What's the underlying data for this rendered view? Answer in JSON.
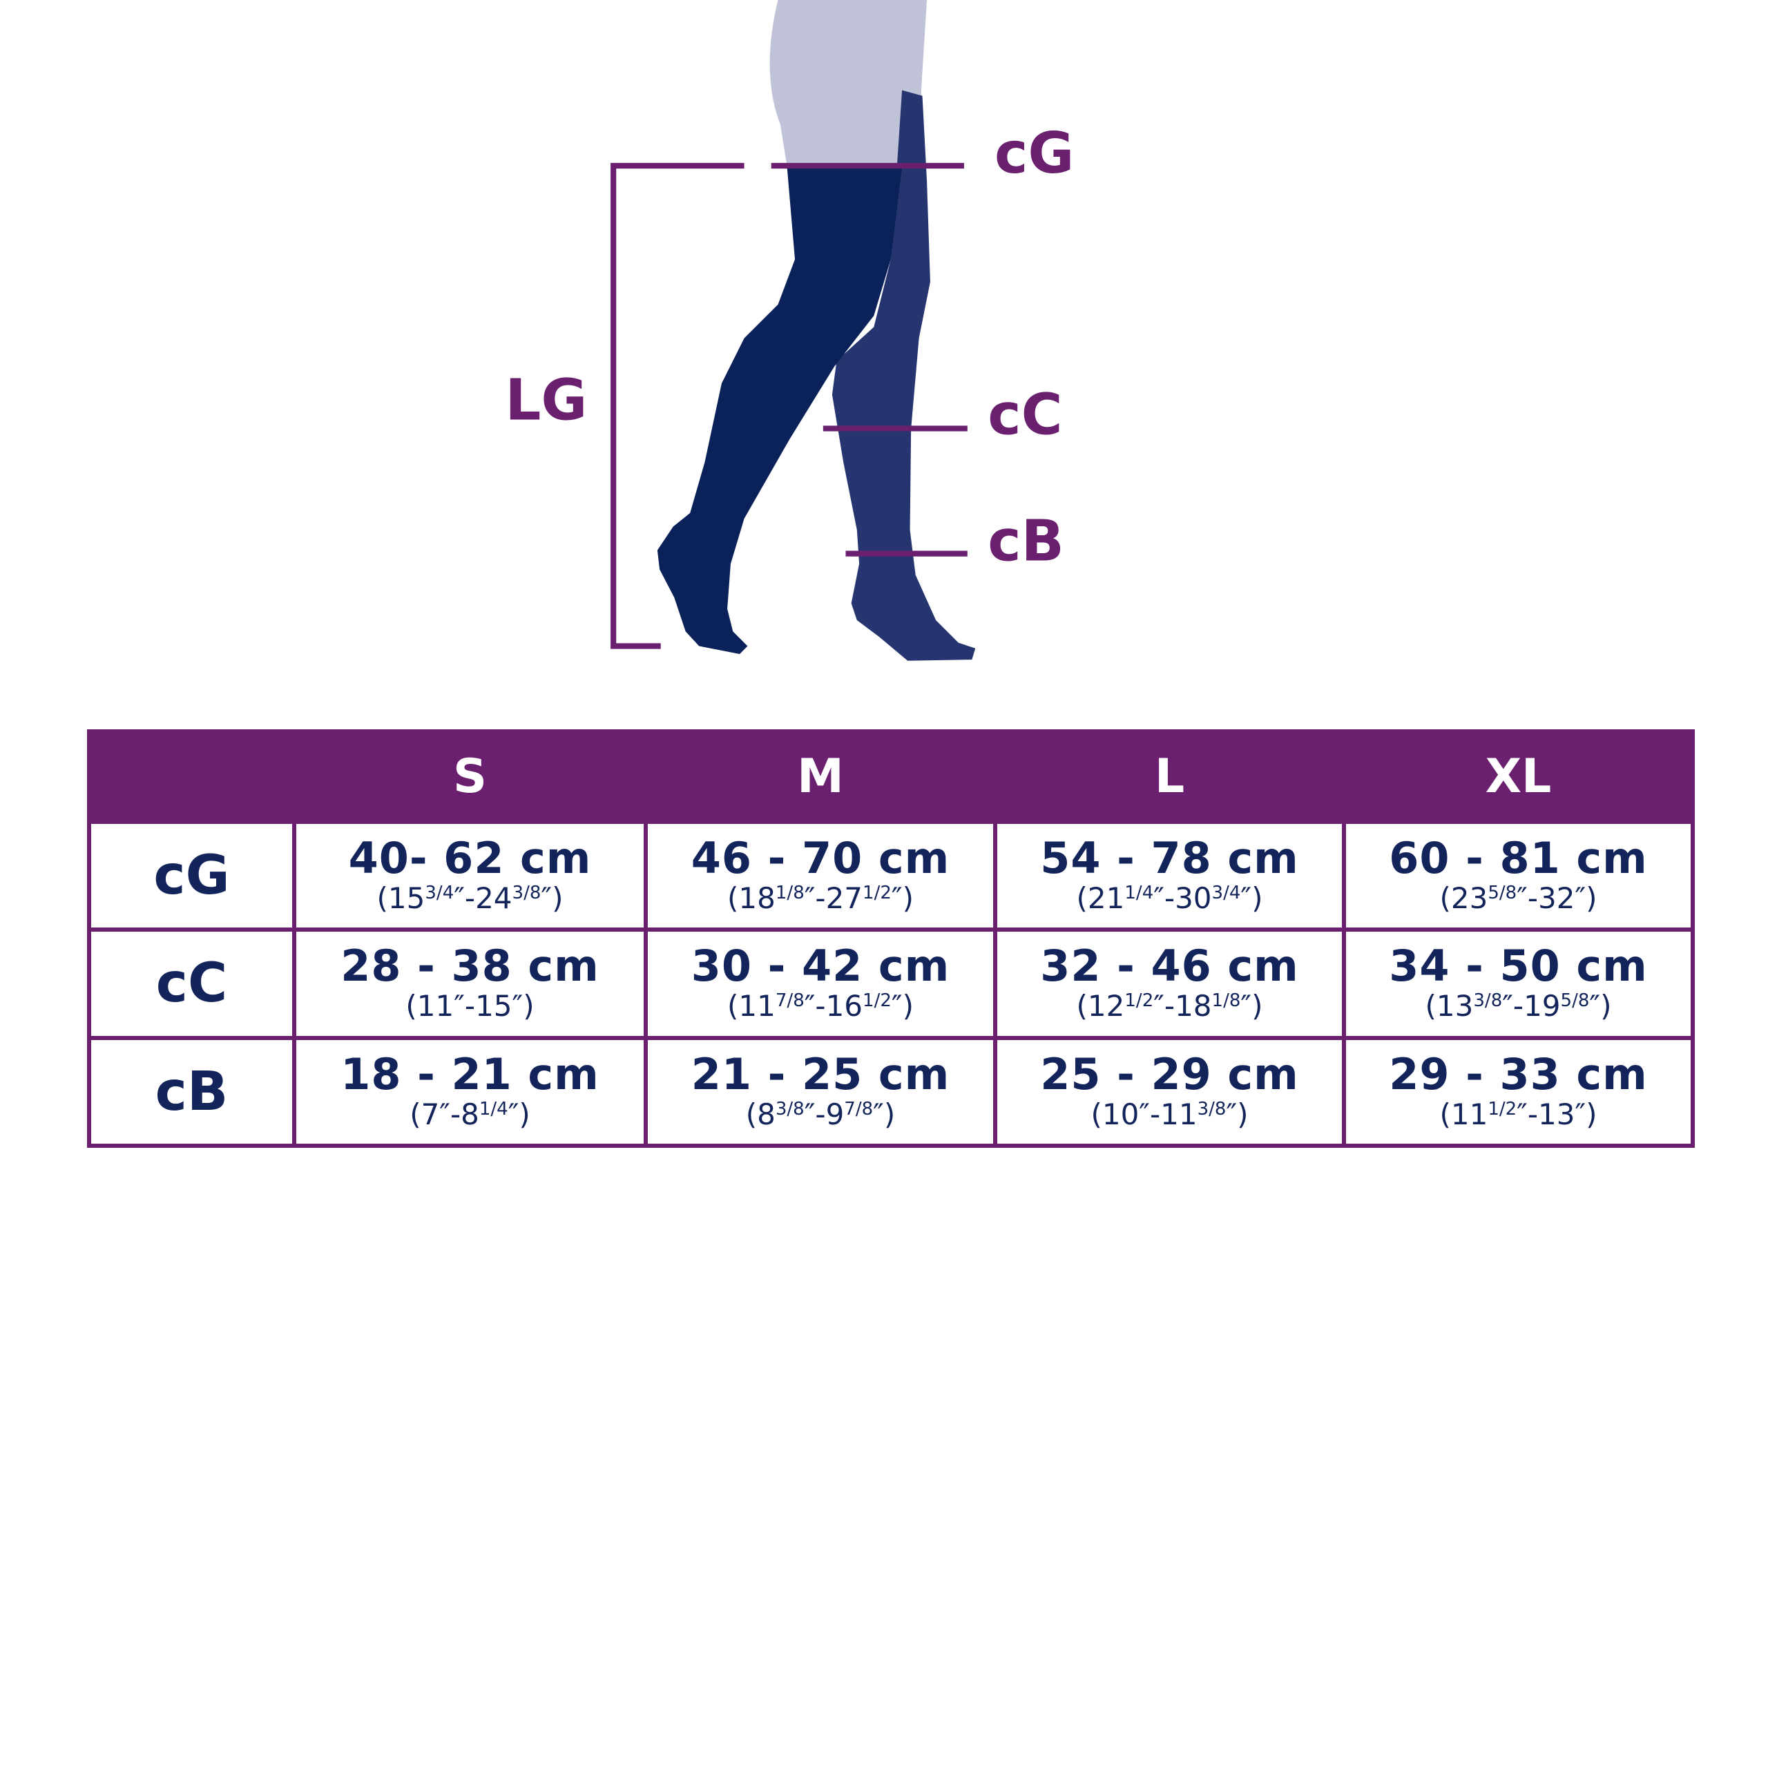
{
  "colors": {
    "purple": "#6a1f6f",
    "navy": "#13245a",
    "leg_front": "#0a2259",
    "leg_back": "#26356f",
    "skin": "#c0c3d8"
  },
  "diagram": {
    "labels": {
      "cG": "cG",
      "LG": "LG",
      "cC": "cC",
      "cB": "cB"
    }
  },
  "table": {
    "corner": "",
    "sizes": [
      "S",
      "M",
      "L",
      "XL"
    ],
    "rows": [
      {
        "label": "cG",
        "cells": [
          {
            "cm": "40- 62 cm",
            "in": [
              [
                "(15",
                "3/4"
              ],
              [
                "″-24",
                "3/8"
              ],
              [
                "″)",
                ""
              ]
            ]
          },
          {
            "cm": "46 - 70 cm",
            "in": [
              [
                "(18",
                "1/8"
              ],
              [
                "″-27",
                "1/2"
              ],
              [
                "″)",
                ""
              ]
            ]
          },
          {
            "cm": "54 - 78 cm",
            "in": [
              [
                "(21",
                "1/4"
              ],
              [
                "″-30",
                "3/4"
              ],
              [
                "″)",
                ""
              ]
            ]
          },
          {
            "cm": "60 - 81 cm",
            "in": [
              [
                "(23",
                "5/8"
              ],
              [
                "″-32″)",
                ""
              ]
            ]
          }
        ]
      },
      {
        "label": "cC",
        "cells": [
          {
            "cm": "28 - 38 cm",
            "in": [
              [
                "(11″-15″)",
                ""
              ]
            ]
          },
          {
            "cm": "30 - 42 cm",
            "in": [
              [
                "(11",
                "7/8"
              ],
              [
                "″-16",
                "1/2"
              ],
              [
                "″)",
                ""
              ]
            ]
          },
          {
            "cm": "32 - 46 cm",
            "in": [
              [
                "(12",
                "1/2"
              ],
              [
                "″-18",
                "1/8"
              ],
              [
                "″)",
                ""
              ]
            ]
          },
          {
            "cm": "34 - 50 cm",
            "in": [
              [
                "(13",
                "3/8"
              ],
              [
                "″-19",
                "5/8"
              ],
              [
                "″)",
                ""
              ]
            ]
          }
        ]
      },
      {
        "label": "cB",
        "cells": [
          {
            "cm": "18 - 21 cm",
            "in": [
              [
                "(7″-8",
                "1/4"
              ],
              [
                "″)",
                ""
              ]
            ]
          },
          {
            "cm": "21 - 25 cm",
            "in": [
              [
                "(8",
                "3/8"
              ],
              [
                "″-9",
                "7/8"
              ],
              [
                "″)",
                ""
              ]
            ]
          },
          {
            "cm": "25 - 29 cm",
            "in": [
              [
                "(10″-11",
                "3/8"
              ],
              [
                "″)",
                ""
              ]
            ]
          },
          {
            "cm": "29 - 33 cm",
            "in": [
              [
                "(11",
                "1/2"
              ],
              [
                "″-13″)",
                ""
              ]
            ]
          }
        ]
      }
    ]
  }
}
